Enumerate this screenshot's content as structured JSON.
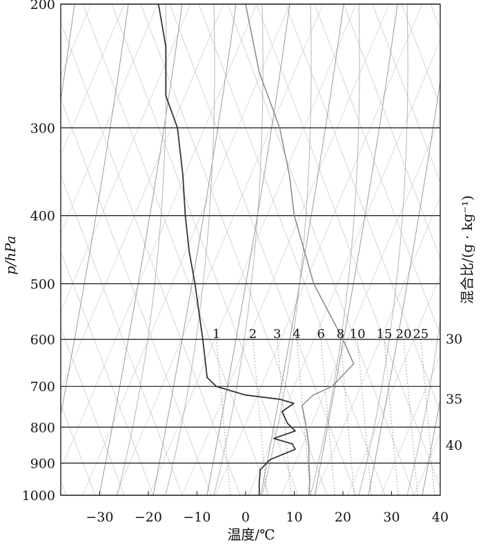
{
  "chart_data": {
    "type": "line",
    "title": "",
    "xlabel": "温度/℃",
    "ylabel": "p/hPa",
    "y2label": "混合比/(g · kg⁻¹)",
    "x_range": [
      -38,
      40
    ],
    "y_range": [
      200,
      1000
    ],
    "y_scale": "log",
    "x_ticks": [
      -30,
      -20,
      -10,
      0,
      10,
      20,
      30,
      40
    ],
    "x_tick_labels": [
      "−30",
      "−20",
      "−10",
      "0",
      "10",
      "20",
      "30",
      "40"
    ],
    "y_ticks": [
      200,
      300,
      400,
      500,
      600,
      700,
      800,
      900,
      1000
    ],
    "y_tick_labels": [
      "200",
      "300",
      "400",
      "500",
      "600",
      "700",
      "800",
      "900",
      "1000"
    ],
    "right_side_labels": [
      "30",
      "35",
      "40"
    ],
    "mixing_ratio_lines": [
      {
        "label": "1",
        "temp_at_600": -6.0
      },
      {
        "label": "2",
        "temp_at_600": 1.5
      },
      {
        "label": "3",
        "temp_at_600": 6.5
      },
      {
        "label": "4",
        "temp_at_600": 10.5
      },
      {
        "label": "6",
        "temp_at_600": 15.5
      },
      {
        "label": "8",
        "temp_at_600": 19.5
      },
      {
        "label": "10",
        "temp_at_600": 23
      },
      {
        "label": "15",
        "temp_at_600": 28.5
      },
      {
        "label": "20",
        "temp_at_600": 32.5
      },
      {
        "label": "25",
        "temp_at_600": 36
      }
    ],
    "grid": true,
    "series": [
      {
        "color": "#333333",
        "points": [
          {
            "p": 200,
            "t": -17.9
          },
          {
            "p": 230,
            "t": -16.4
          },
          {
            "p": 250,
            "t": -16.4
          },
          {
            "p": 270,
            "t": -16.4
          },
          {
            "p": 300,
            "t": -14.0
          },
          {
            "p": 350,
            "t": -12.9
          },
          {
            "p": 400,
            "t": -12.4
          },
          {
            "p": 450,
            "t": -11.6
          },
          {
            "p": 500,
            "t": -10.4
          },
          {
            "p": 600,
            "t": -8.8
          },
          {
            "p": 680,
            "t": -7.9
          },
          {
            "p": 700,
            "t": -6.0
          },
          {
            "p": 720,
            "t": 0.0
          },
          {
            "p": 730,
            "t": 7.0
          },
          {
            "p": 740,
            "t": 9.9
          },
          {
            "p": 760,
            "t": 7.5
          },
          {
            "p": 790,
            "t": 8.6
          },
          {
            "p": 810,
            "t": 10.2
          },
          {
            "p": 830,
            "t": 5.8
          },
          {
            "p": 845,
            "t": 9.6
          },
          {
            "p": 860,
            "t": 10.2
          },
          {
            "p": 890,
            "t": 5.0
          },
          {
            "p": 920,
            "t": 3.0
          },
          {
            "p": 960,
            "t": 2.8
          },
          {
            "p": 1000,
            "t": 2.8
          }
        ]
      },
      {
        "color": "#8c8c8c",
        "points": [
          {
            "p": 200,
            "t": 0.0
          },
          {
            "p": 250,
            "t": 2.8
          },
          {
            "p": 300,
            "t": 7.0
          },
          {
            "p": 350,
            "t": 9.0
          },
          {
            "p": 400,
            "t": 10.0
          },
          {
            "p": 500,
            "t": 14.0
          },
          {
            "p": 600,
            "t": 20.0
          },
          {
            "p": 650,
            "t": 22.2
          },
          {
            "p": 700,
            "t": 17.8
          },
          {
            "p": 720,
            "t": 13.9
          },
          {
            "p": 745,
            "t": 11.6
          },
          {
            "p": 800,
            "t": 12.5
          },
          {
            "p": 850,
            "t": 13.0
          },
          {
            "p": 900,
            "t": 13.0
          },
          {
            "p": 950,
            "t": 13.2
          },
          {
            "p": 1000,
            "t": 13.0
          }
        ]
      }
    ]
  }
}
